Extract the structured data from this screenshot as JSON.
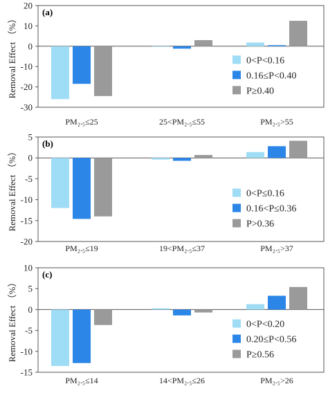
{
  "colors": {
    "light": "#9fdcf5",
    "mid": "#2b86e8",
    "grey": "#9a9a9a"
  },
  "chart_data": [
    {
      "type": "bar",
      "panel_label": "(a)",
      "ylabel": "Removal Effect （%）",
      "ylim": [
        -30,
        20
      ],
      "yticks": [
        20,
        10,
        0,
        -10,
        -20,
        -30
      ],
      "categories": [
        "PM₂.₅≤25",
        "25<PM₂.₅≤55",
        "PM₂.₅>55"
      ],
      "series": [
        {
          "name": "0<P<0.16",
          "values": [
            -26,
            0,
            1.8
          ]
        },
        {
          "name": "0.16≤P<0.40",
          "values": [
            -18.5,
            -1.2,
            0.5
          ]
        },
        {
          "name": "P≥0.40",
          "values": [
            -24.5,
            3,
            12.5
          ]
        }
      ],
      "legend_position": "right"
    },
    {
      "type": "bar",
      "panel_label": "(b)",
      "ylabel": "Removal Effect （%）",
      "ylim": [
        -20,
        5
      ],
      "yticks": [
        5,
        0,
        -5,
        -10,
        -15,
        -20
      ],
      "categories": [
        "PM₂.₅≤19",
        "19<PM₂.₅≤37",
        "PM₂.₅>37"
      ],
      "series": [
        {
          "name": "0<P≤0.16",
          "values": [
            -12,
            -0.4,
            1.4
          ]
        },
        {
          "name": "0.16<P≤0.36",
          "values": [
            -14.6,
            -0.7,
            2.8
          ]
        },
        {
          "name": "P>0.36",
          "values": [
            -14,
            0.7,
            4.1
          ]
        }
      ],
      "legend_position": "right"
    },
    {
      "type": "bar",
      "panel_label": "(c)",
      "ylabel": "Removal Effect （%）",
      "ylim": [
        -15,
        10
      ],
      "yticks": [
        10,
        5,
        0,
        -5,
        -10,
        -15
      ],
      "categories": [
        "PM₂.₅≤14",
        "14<PM₂.₅≤26",
        "PM₂.₅>26"
      ],
      "series": [
        {
          "name": "0<P<0.20",
          "values": [
            -13.5,
            0.3,
            1.3
          ]
        },
        {
          "name": "0.20≤P<0.56",
          "values": [
            -12.8,
            -1.4,
            3.3
          ]
        },
        {
          "name": "P≥0.56",
          "values": [
            -3.7,
            -0.7,
            5.4
          ]
        }
      ],
      "legend_position": "right"
    }
  ]
}
